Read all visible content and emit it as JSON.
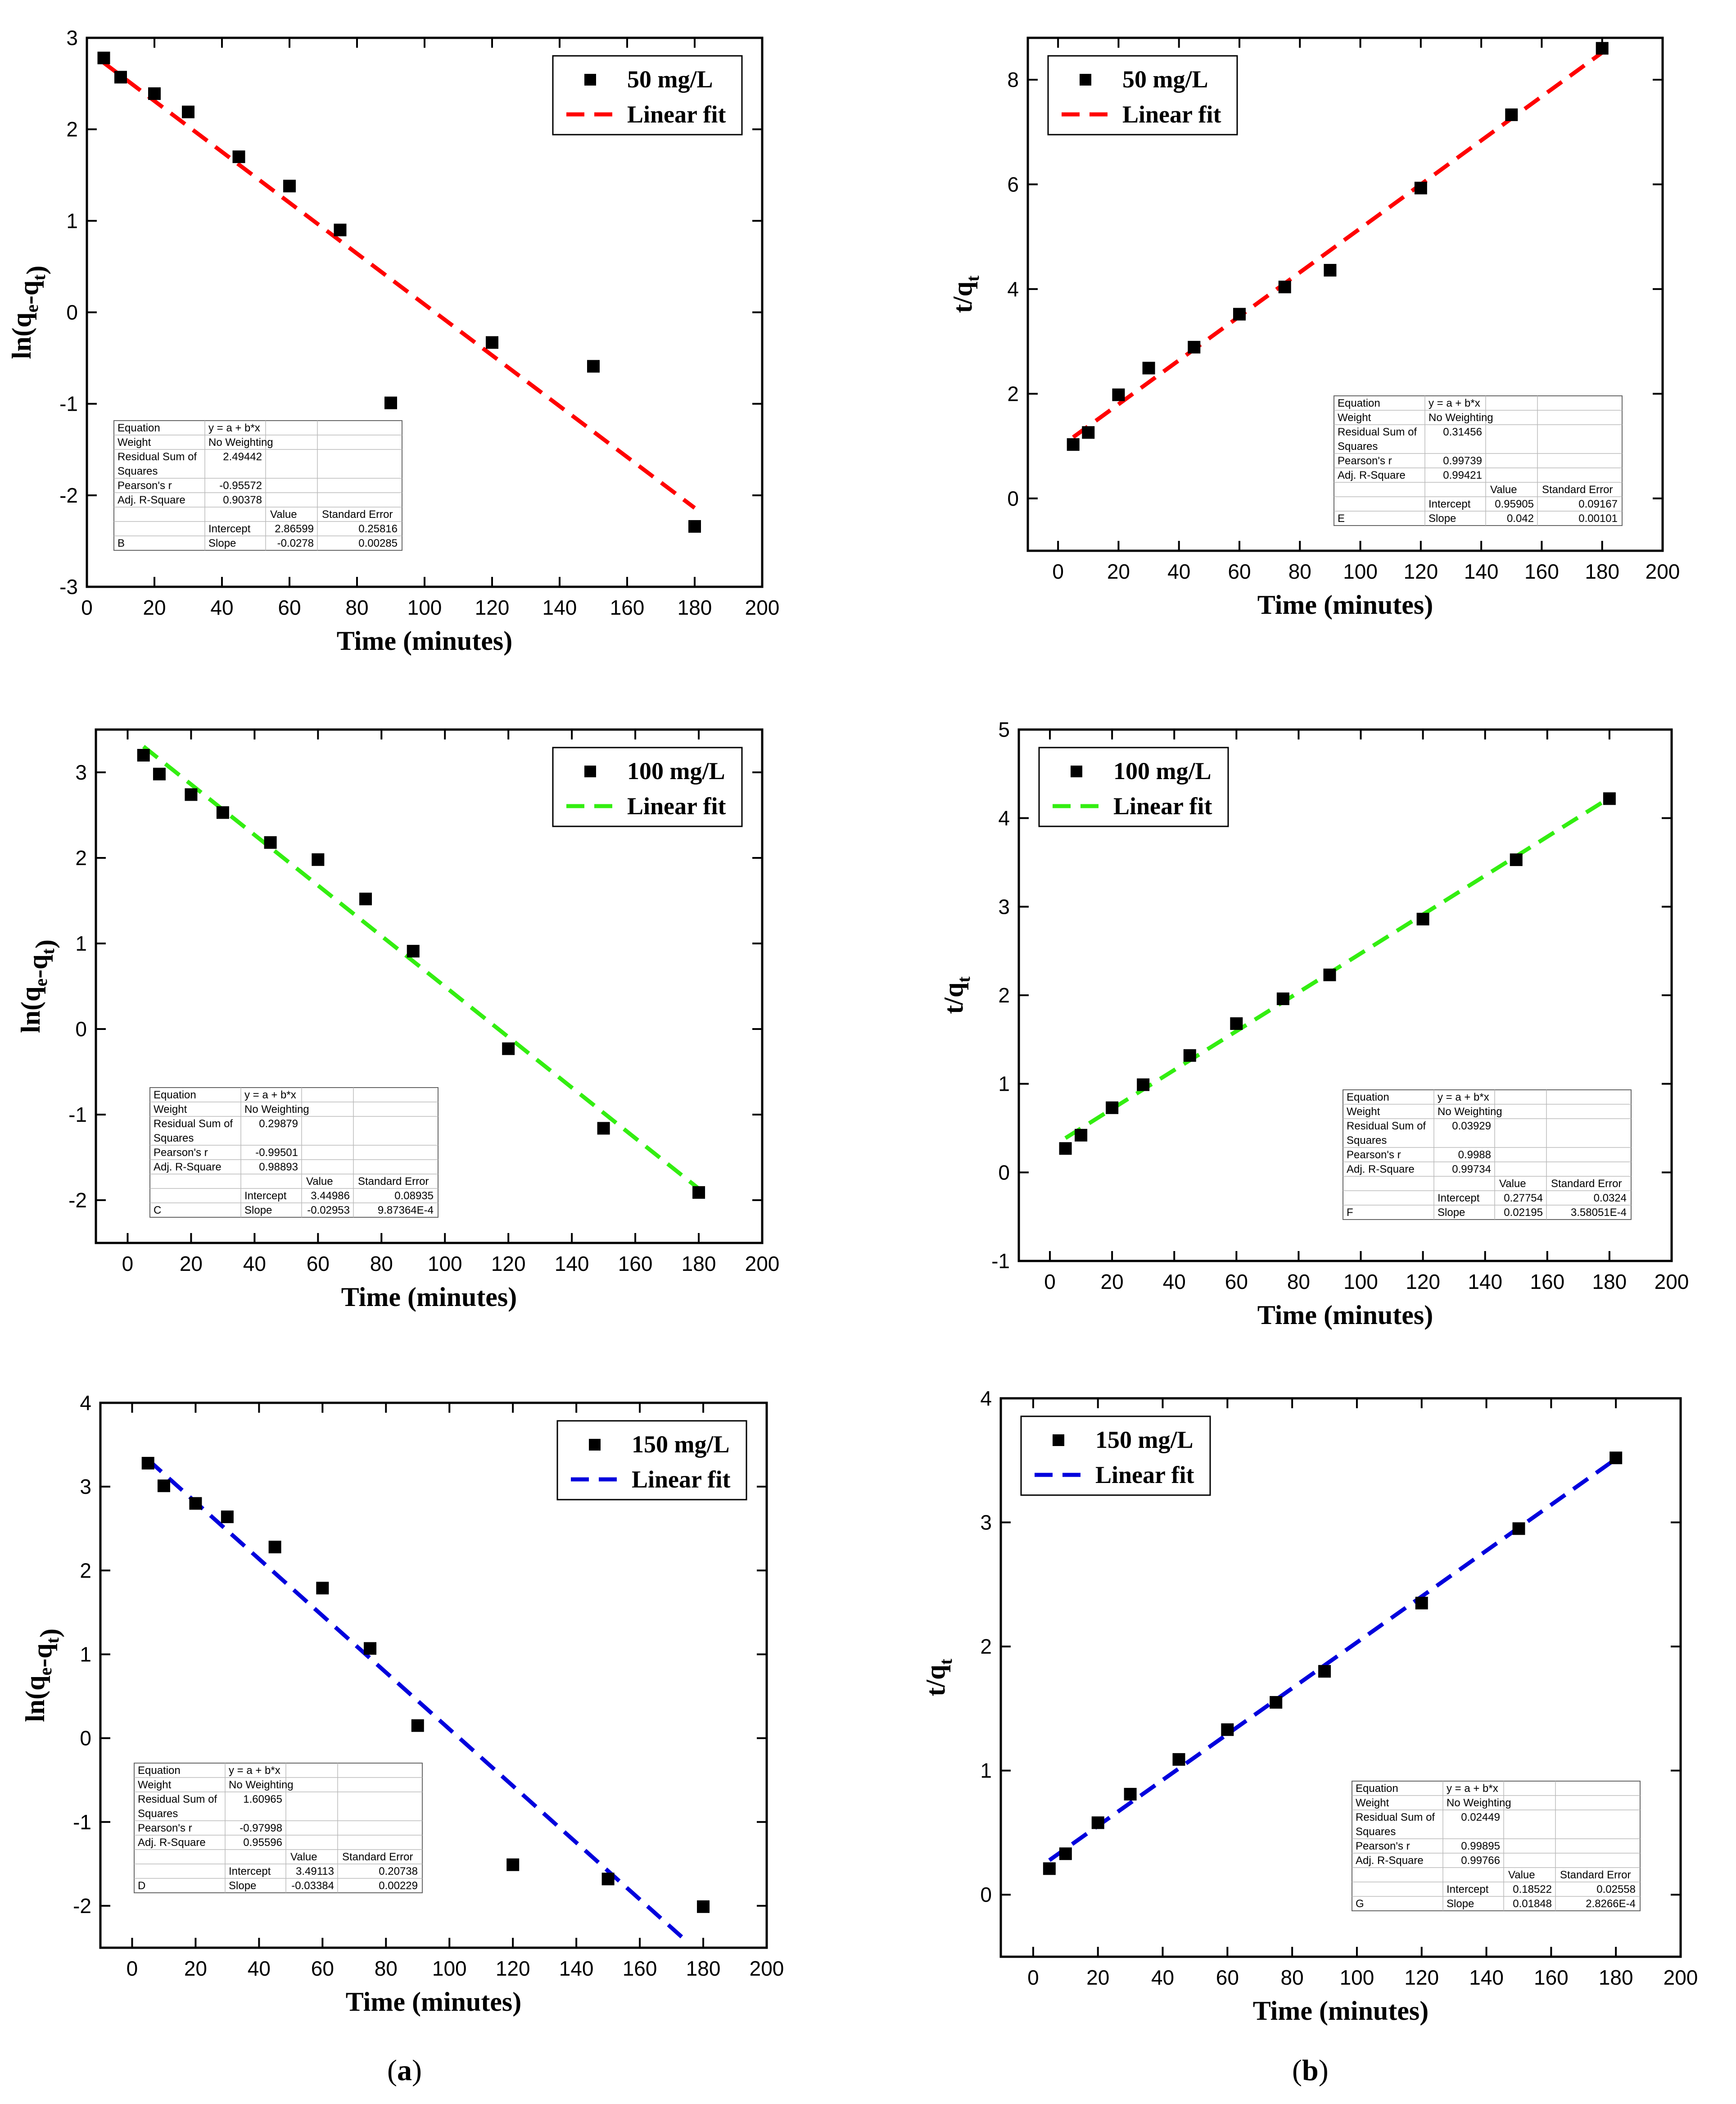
{
  "captions": [
    {
      "open": "(",
      "letter": "a",
      "close": ")"
    },
    {
      "open": "(",
      "letter": "b",
      "close": ")"
    }
  ],
  "chart_data": [
    {
      "type": "scatter",
      "panel": "a-top",
      "xlabel": "Time (minutes)",
      "ylabel": {
        "main": "ln(q",
        "sub1": "e",
        "mid": "-q",
        "sub2": "t",
        "end": ")"
      },
      "xlim": [
        0,
        200
      ],
      "ylim": [
        -3,
        3
      ],
      "xticks": [
        0,
        20,
        40,
        60,
        80,
        100,
        120,
        140,
        160,
        180,
        200
      ],
      "yticks": [
        -3,
        -2,
        -1,
        0,
        1,
        2,
        3
      ],
      "x": [
        5,
        10,
        20,
        30,
        45,
        60,
        75,
        90,
        120,
        150,
        180
      ],
      "y": [
        2.78,
        2.57,
        2.39,
        2.19,
        1.7,
        1.38,
        0.9,
        -0.99,
        -0.33,
        -0.59,
        -2.34
      ],
      "fit": {
        "intercept": 2.86599,
        "slope": -0.0278,
        "x0": 5,
        "x1": 180
      },
      "fit_color": "#ff0000",
      "legend": {
        "series": "50 mg/L",
        "fit": "Linear fit",
        "position": "top-right"
      },
      "stats": {
        "equation_label": "Equation",
        "equation": "y = a + b*x",
        "weight_label": "Weight",
        "weight": "No Weighting",
        "rss_label1": "Residual Sum of",
        "rss_label2": "Squares",
        "rss": "2.49442",
        "pearson_label": "Pearson's r",
        "pearson": "-0.95572",
        "adjr_label": "Adj. R-Square",
        "adjr": "0.90378",
        "value_label": "Value",
        "se_label": "Standard Error",
        "letter": "B",
        "intercept_label": "Intercept",
        "intercept": "2.86599",
        "intercept_se": "0.25816",
        "slope_label": "Slope",
        "slope": "-0.0278",
        "slope_se": "0.00285"
      }
    },
    {
      "type": "scatter",
      "panel": "b-top",
      "xlabel": "Time (minutes)",
      "ylabel": {
        "main": "t/q",
        "sub1": "t",
        "mid": "",
        "sub2": "",
        "end": ""
      },
      "xlim": [
        -10,
        200
      ],
      "ylim": [
        -1,
        8.8
      ],
      "xticks": [
        0,
        20,
        40,
        60,
        80,
        100,
        120,
        140,
        160,
        180,
        200
      ],
      "yticks": [
        0,
        2,
        4,
        6,
        8
      ],
      "x": [
        5,
        10,
        20,
        30,
        45,
        60,
        75,
        90,
        120,
        150,
        180
      ],
      "y": [
        1.03,
        1.26,
        1.98,
        2.49,
        2.89,
        3.52,
        4.04,
        4.36,
        5.93,
        7.33,
        8.6
      ],
      "fit": {
        "intercept": 0.95905,
        "slope": 0.042,
        "x0": 5,
        "x1": 180
      },
      "fit_color": "#ff0000",
      "legend": {
        "series": "50 mg/L",
        "fit": "Linear fit",
        "position": "top-left"
      },
      "stats": {
        "equation_label": "Equation",
        "equation": "y = a + b*x",
        "weight_label": "Weight",
        "weight": "No Weighting",
        "rss_label1": "Residual Sum of",
        "rss_label2": "Squares",
        "rss": "0.31456",
        "pearson_label": "Pearson's r",
        "pearson": "0.99739",
        "adjr_label": "Adj. R-Square",
        "adjr": "0.99421",
        "value_label": "Value",
        "se_label": "Standard Error",
        "letter": "E",
        "intercept_label": "Intercept",
        "intercept": "0.95905",
        "intercept_se": "0.09167",
        "slope_label": "Slope",
        "slope": "0.042",
        "slope_se": "0.00101"
      }
    },
    {
      "type": "scatter",
      "panel": "a-middle",
      "xlabel": "Time (minutes)",
      "ylabel": {
        "main": "ln(q",
        "sub1": "e",
        "mid": "-q",
        "sub2": "t",
        "end": ")"
      },
      "xlim": [
        -10,
        200
      ],
      "ylim": [
        -2.5,
        3.5
      ],
      "xticks": [
        0,
        20,
        40,
        60,
        80,
        100,
        120,
        140,
        160,
        180,
        200
      ],
      "yticks": [
        -2,
        -1,
        0,
        1,
        2,
        3
      ],
      "x": [
        5,
        10,
        20,
        30,
        45,
        60,
        75,
        90,
        120,
        150,
        180
      ],
      "y": [
        3.2,
        2.98,
        2.74,
        2.53,
        2.18,
        1.98,
        1.52,
        0.91,
        -0.23,
        -1.16,
        -1.91
      ],
      "fit": {
        "intercept": 3.44986,
        "slope": -0.02953,
        "x0": 5,
        "x1": 180
      },
      "fit_color": "#33ee11",
      "legend": {
        "series": "100 mg/L",
        "fit": "Linear fit",
        "position": "top-right"
      },
      "stats": {
        "equation_label": "Equation",
        "equation": "y = a + b*x",
        "weight_label": "Weight",
        "weight": "No Weighting",
        "rss_label1": "Residual Sum of",
        "rss_label2": "Squares",
        "rss": "0.29879",
        "pearson_label": "Pearson's r",
        "pearson": "-0.99501",
        "adjr_label": "Adj. R-Square",
        "adjr": "0.98893",
        "value_label": "Value",
        "se_label": "Standard Error",
        "letter": "C",
        "intercept_label": "Intercept",
        "intercept": "3.44986",
        "intercept_se": "0.08935",
        "slope_label": "Slope",
        "slope": "-0.02953",
        "slope_se": "9.87364E-4"
      }
    },
    {
      "type": "scatter",
      "panel": "b-middle",
      "xlabel": "Time (minutes)",
      "ylabel": {
        "main": "t/q",
        "sub1": "t",
        "mid": "",
        "sub2": "",
        "end": ""
      },
      "xlim": [
        -10,
        200
      ],
      "ylim": [
        -1,
        5
      ],
      "xticks": [
        0,
        20,
        40,
        60,
        80,
        100,
        120,
        140,
        160,
        180,
        200
      ],
      "yticks": [
        -1,
        0,
        1,
        2,
        3,
        4,
        5
      ],
      "x": [
        5,
        10,
        20,
        30,
        45,
        60,
        75,
        90,
        120,
        150,
        180
      ],
      "y": [
        0.27,
        0.42,
        0.73,
        0.99,
        1.32,
        1.68,
        1.96,
        2.23,
        2.86,
        3.53,
        4.22
      ],
      "fit": {
        "intercept": 0.27754,
        "slope": 0.02195,
        "x0": 5,
        "x1": 180
      },
      "fit_color": "#33ee11",
      "legend": {
        "series": "100 mg/L",
        "fit": "Linear fit",
        "position": "top-left"
      },
      "stats": {
        "equation_label": "Equation",
        "equation": "y = a + b*x",
        "weight_label": "Weight",
        "weight": "No Weighting",
        "rss_label1": "Residual Sum of",
        "rss_label2": "Squares",
        "rss": "0.03929",
        "pearson_label": "Pearson's r",
        "pearson": "0.9988",
        "adjr_label": "Adj. R-Square",
        "adjr": "0.99734",
        "value_label": "Value",
        "se_label": "Standard Error",
        "letter": "F",
        "intercept_label": "Intercept",
        "intercept": "0.27754",
        "intercept_se": "0.0324",
        "slope_label": "Slope",
        "slope": "0.02195",
        "slope_se": "3.58051E-4"
      }
    },
    {
      "type": "scatter",
      "panel": "a-bottom",
      "xlabel": "Time (minutes)",
      "ylabel": {
        "main": "ln(q",
        "sub1": "e",
        "mid": "-q",
        "sub2": "t",
        "end": ")"
      },
      "xlim": [
        -10,
        200
      ],
      "ylim": [
        -2.5,
        4
      ],
      "xticks": [
        0,
        20,
        40,
        60,
        80,
        100,
        120,
        140,
        160,
        180,
        200
      ],
      "yticks": [
        -2,
        -1,
        0,
        1,
        2,
        3,
        4
      ],
      "x": [
        5,
        10,
        20,
        30,
        45,
        60,
        75,
        90,
        120,
        150,
        180
      ],
      "y": [
        3.28,
        3.01,
        2.8,
        2.64,
        2.28,
        1.79,
        1.07,
        0.15,
        -1.51,
        -1.68,
        -2.01
      ],
      "fit": {
        "intercept": 3.49113,
        "slope": -0.03384,
        "x0": 5,
        "x1": 175
      },
      "fit_color": "#0000dd",
      "legend": {
        "series": "150 mg/L",
        "fit": "Linear fit",
        "position": "top-right"
      },
      "stats": {
        "equation_label": "Equation",
        "equation": "y = a + b*x",
        "weight_label": "Weight",
        "weight": "No Weighting",
        "rss_label1": "Residual Sum of",
        "rss_label2": "Squares",
        "rss": "1.60965",
        "pearson_label": "Pearson's r",
        "pearson": "-0.97998",
        "adjr_label": "Adj. R-Square",
        "adjr": "0.95596",
        "value_label": "Value",
        "se_label": "Standard Error",
        "letter": "D",
        "intercept_label": "Intercept",
        "intercept": "3.49113",
        "intercept_se": "0.20738",
        "slope_label": "Slope",
        "slope": "-0.03384",
        "slope_se": "0.00229"
      }
    },
    {
      "type": "scatter",
      "panel": "b-bottom",
      "xlabel": "Time (minutes)",
      "ylabel": {
        "main": "t/q",
        "sub1": "t",
        "mid": "",
        "sub2": "",
        "end": ""
      },
      "xlim": [
        -10,
        200
      ],
      "ylim": [
        -0.5,
        4
      ],
      "xticks": [
        0,
        20,
        40,
        60,
        80,
        100,
        120,
        140,
        160,
        180,
        200
      ],
      "yticks": [
        0,
        1,
        2,
        3,
        4
      ],
      "x": [
        5,
        10,
        20,
        30,
        45,
        60,
        75,
        90,
        120,
        150,
        180
      ],
      "y": [
        0.21,
        0.33,
        0.58,
        0.81,
        1.09,
        1.33,
        1.55,
        1.8,
        2.35,
        2.95,
        3.52
      ],
      "fit": {
        "intercept": 0.18522,
        "slope": 0.01848,
        "x0": 5,
        "x1": 180
      },
      "fit_color": "#0000dd",
      "legend": {
        "series": "150 mg/L",
        "fit": "Linear fit",
        "position": "top-left"
      },
      "stats": {
        "equation_label": "Equation",
        "equation": "y = a + b*x",
        "weight_label": "Weight",
        "weight": "No Weighting",
        "rss_label1": "Residual Sum of",
        "rss_label2": "Squares",
        "rss": "0.02449",
        "pearson_label": "Pearson's r",
        "pearson": "0.99895",
        "adjr_label": "Adj. R-Square",
        "adjr": "0.99766",
        "value_label": "Value",
        "se_label": "Standard Error",
        "letter": "G",
        "intercept_label": "Intercept",
        "intercept": "0.18522",
        "intercept_se": "0.02558",
        "slope_label": "Slope",
        "slope": "0.01848",
        "slope_se": "2.8266E-4"
      }
    }
  ]
}
